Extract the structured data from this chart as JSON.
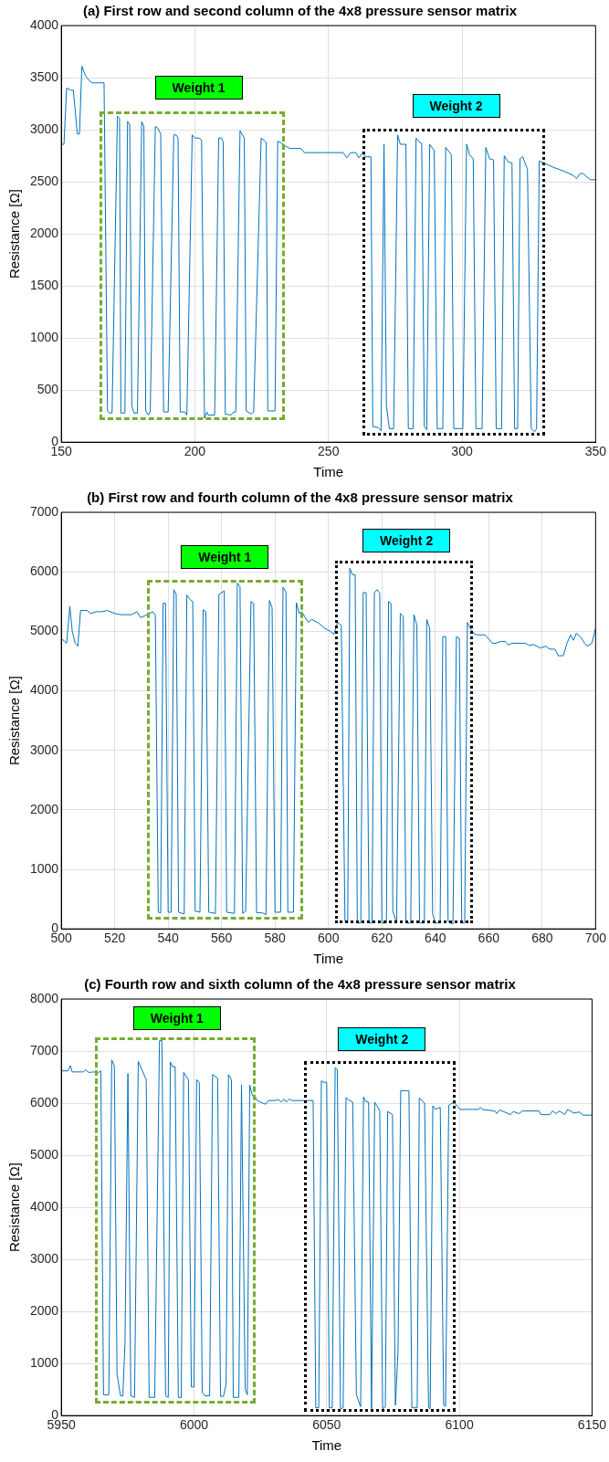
{
  "chart_data": [
    {
      "type": "line",
      "title": "(a) First row and second column of the 4x8 pressure sensor matrix",
      "xlabel": "Time",
      "ylabel": "Resistance [Ω]",
      "color": "#0072bd",
      "grid": true,
      "legend": false,
      "xlim": [
        150,
        350
      ],
      "xticks": [
        150,
        200,
        250,
        300,
        350
      ],
      "ylim": [
        0,
        4000
      ],
      "yticks": [
        0,
        500,
        1000,
        1500,
        2000,
        2500,
        3000,
        3500,
        4000
      ],
      "x": [
        150,
        151,
        152,
        153.5,
        154.5,
        156,
        156.8,
        157.7,
        159,
        160.5,
        161.5,
        166,
        167.3,
        168,
        169,
        171,
        171.8,
        172.3,
        173.8,
        174.8,
        175.6,
        176.4,
        177.2,
        178.5,
        180.1,
        180.9,
        181.6,
        182.6,
        183.3,
        185.2,
        186,
        187.2,
        188.3,
        190,
        192.1,
        193,
        193.7,
        194.5,
        196.3,
        197,
        199,
        200,
        201.6,
        202.5,
        203.6,
        204.5,
        205,
        207.4,
        208.9,
        210,
        210.6,
        211.4,
        213.5,
        214.5,
        215.3,
        216.9,
        218.5,
        219.2,
        221,
        222,
        224.8,
        226.7,
        227.3,
        228.2,
        230,
        231,
        232.5,
        234.1,
        235.5,
        239.7,
        241,
        255.5,
        256.9,
        258.3,
        260.3,
        261.4,
        262.8,
        263.8,
        265.9,
        266.6,
        268.6,
        269.7,
        270.8,
        271.7,
        272.8,
        274.4,
        275.9,
        276.9,
        279,
        279.9,
        281.7,
        282.8,
        284.5,
        284.9,
        285.9,
        286.8,
        287.9,
        289.6,
        290.7,
        292.8,
        293.9,
        296,
        296.9,
        300.3,
        301.7,
        302.8,
        304.2,
        305.2,
        307.5,
        308.9,
        310.3,
        311.8,
        312.8,
        314.8,
        315.8,
        317.3,
        318.7,
        319.7,
        320.8,
        321.7,
        322.7,
        324.5,
        325.9,
        327.2,
        327.9,
        328.9,
        330.7,
        334.1,
        338.3,
        341.7,
        342.9,
        344.2,
        345.2,
        348,
        350
      ],
      "values": [
        2860,
        2860,
        3400,
        3380,
        3380,
        2960,
        2960,
        3610,
        3520,
        3470,
        3450,
        3450,
        300,
        280,
        280,
        3130,
        3110,
        280,
        280,
        3080,
        3050,
        350,
        280,
        280,
        3080,
        3030,
        300,
        260,
        300,
        3030,
        3020,
        2960,
        290,
        290,
        2950,
        2950,
        2920,
        290,
        290,
        260,
        2950,
        2920,
        2920,
        2900,
        230,
        290,
        260,
        260,
        2920,
        2920,
        2880,
        270,
        260,
        290,
        290,
        2990,
        2920,
        300,
        270,
        290,
        2920,
        2880,
        300,
        300,
        300,
        2890,
        2870,
        2840,
        2820,
        2820,
        2780,
        2780,
        2730,
        2780,
        2780,
        2730,
        2780,
        2740,
        2740,
        150,
        140,
        110,
        2860,
        350,
        130,
        130,
        2950,
        2860,
        2860,
        130,
        130,
        2920,
        2870,
        2870,
        150,
        120,
        2860,
        2800,
        130,
        130,
        2830,
        2760,
        130,
        130,
        2860,
        2760,
        2720,
        130,
        130,
        2830,
        2720,
        2710,
        130,
        130,
        2750,
        2690,
        2680,
        130,
        130,
        2720,
        2740,
        2620,
        130,
        100,
        130,
        2700,
        2680,
        2640,
        2600,
        2560,
        2530,
        2580,
        2580,
        2520,
        2520
      ],
      "annotations": [
        "Weight 1",
        "Weight 2"
      ]
    },
    {
      "type": "line",
      "title": "(b) First row and fourth column of the 4x8 pressure sensor matrix",
      "xlabel": "Time",
      "ylabel": "Resistance [Ω]",
      "color": "#0072bd",
      "grid": true,
      "legend": false,
      "xlim": [
        500,
        700
      ],
      "xticks": [
        500,
        520,
        540,
        560,
        580,
        600,
        620,
        640,
        660,
        680,
        700
      ],
      "ylim": [
        0,
        7000
      ],
      "yticks": [
        0,
        1000,
        2000,
        3000,
        4000,
        5000,
        6000,
        7000
      ],
      "x": [
        500,
        502,
        503.2,
        504.1,
        505.2,
        506.2,
        507.2,
        509.7,
        511,
        513.1,
        515.2,
        517.2,
        520,
        522.1,
        526.2,
        528.3,
        529.7,
        531.7,
        534.2,
        535.2,
        536.3,
        537.2,
        538.1,
        539,
        540,
        541.1,
        542.1,
        543,
        543.9,
        546,
        547,
        548.3,
        549.2,
        550.1,
        551.9,
        553.1,
        554.1,
        555.2,
        557.7,
        559,
        561,
        561.9,
        564.8,
        565.9,
        566.9,
        567.9,
        569,
        571,
        572,
        573.1,
        575.2,
        576.6,
        577.9,
        578.9,
        580,
        582.1,
        583,
        584.1,
        584.8,
        586.9,
        588,
        589,
        590,
        592.4,
        593.8,
        596.6,
        598.6,
        600.7,
        602,
        603.4,
        604.8,
        606.2,
        607.2,
        608,
        609,
        610,
        610.8,
        612.1,
        613,
        614.1,
        615.2,
        616.3,
        617.2,
        618.2,
        619.2,
        620,
        621.7,
        622.5,
        623.4,
        624.1,
        625.5,
        626.9,
        628,
        629,
        630.8,
        632,
        633.1,
        634.1,
        635.9,
        636.8,
        637.9,
        639,
        640,
        641.8,
        642.8,
        643.9,
        644.8,
        646.6,
        647.9,
        649,
        649.9,
        651,
        652,
        653.1,
        654.5,
        655.9,
        658.6,
        661.4,
        662.8,
        664.5,
        666.2,
        667.3,
        668.6,
        673.8,
        675.2,
        676.6,
        679.3,
        681.4,
        682.8,
        684.8,
        686,
        687.9,
        689.3,
        690.6,
        691.7,
        692.8,
        694.5,
        695.9,
        696.8,
        698.6,
        700
      ],
      "values": [
        4880,
        4800,
        5420,
        5000,
        4800,
        4750,
        5350,
        5350,
        5300,
        5330,
        5330,
        5350,
        5300,
        5280,
        5280,
        5330,
        5230,
        5270,
        5330,
        5270,
        280,
        270,
        5470,
        5470,
        280,
        280,
        5700,
        5620,
        280,
        250,
        5610,
        5530,
        5500,
        300,
        280,
        5360,
        5330,
        280,
        260,
        5620,
        5680,
        280,
        260,
        5810,
        5750,
        260,
        300,
        5500,
        5470,
        270,
        270,
        240,
        5520,
        5400,
        280,
        280,
        5740,
        5660,
        280,
        280,
        5480,
        5300,
        5330,
        5150,
        5200,
        5130,
        5050,
        5000,
        4950,
        5150,
        5100,
        130,
        100,
        6060,
        5950,
        5950,
        100,
        100,
        5650,
        5650,
        100,
        100,
        5650,
        5700,
        5640,
        100,
        100,
        5500,
        5470,
        300,
        100,
        5300,
        5250,
        100,
        100,
        5280,
        5100,
        100,
        100,
        5200,
        5050,
        250,
        100,
        100,
        4910,
        4910,
        120,
        80,
        4910,
        4880,
        100,
        100,
        5150,
        5050,
        4960,
        4940,
        4940,
        4800,
        4800,
        4830,
        4830,
        4770,
        4800,
        4800,
        4760,
        4780,
        4720,
        4750,
        4700,
        4700,
        4590,
        4590,
        4800,
        4940,
        4850,
        4970,
        4900,
        4800,
        4750,
        4800,
        5050
      ],
      "annotations": [
        "Weight 1",
        "Weight 2"
      ]
    },
    {
      "type": "line",
      "title": "(c) Fourth row and sixth column of the 4x8 pressure sensor matrix",
      "xlabel": "Time",
      "ylabel": "Resistance [Ω]",
      "color": "#0072bd",
      "grid": true,
      "legend": false,
      "xlim": [
        5950,
        6150
      ],
      "xticks": [
        5950,
        6000,
        6050,
        6100,
        6150
      ],
      "ylim": [
        0,
        8000
      ],
      "yticks": [
        0,
        1000,
        2000,
        3000,
        4000,
        5000,
        6000,
        7000,
        8000
      ],
      "x": [
        5950,
        5952.5,
        5953.4,
        5954.1,
        5958.3,
        5959.2,
        5960.3,
        5962.4,
        5963.8,
        5964.9,
        5965.9,
        5967.9,
        5969,
        5970,
        5971,
        5972.3,
        5973.2,
        5974,
        5975.1,
        5976.2,
        5977.6,
        5979,
        5980.3,
        5982,
        5983.1,
        5985.2,
        5987,
        5987.9,
        5989.3,
        5990.3,
        5991.1,
        5991.9,
        5992.9,
        5994.1,
        5995.2,
        5996.1,
        5997.9,
        5999,
        6000,
        6001,
        6002,
        6003.1,
        6004.1,
        6005.9,
        6007,
        6008.9,
        6010,
        6011.1,
        6012.1,
        6013,
        6014.1,
        6014.8,
        6016.9,
        6017.9,
        6019.3,
        6020.1,
        6021,
        6022,
        6022.8,
        6023.8,
        6025.9,
        6027,
        6028.1,
        6030.7,
        6031.8,
        6032.8,
        6033.9,
        6034.8,
        6035.9,
        6036.9,
        6044.9,
        6045.9,
        6047,
        6048,
        6048.7,
        6050,
        6051,
        6052.1,
        6053.2,
        6054,
        6055.2,
        6056.2,
        6057.3,
        6058.3,
        6059.8,
        6061.2,
        6062.8,
        6063.9,
        6064.7,
        6065.8,
        6066.9,
        6068.1,
        6069.3,
        6070,
        6071.1,
        6072.1,
        6073,
        6074.8,
        6075.9,
        6076.9,
        6077.9,
        6081,
        6082.1,
        6084.1,
        6084.9,
        6086.9,
        6088.4,
        6089,
        6090,
        6091,
        6092.8,
        6094.1,
        6094.8,
        6096,
        6097.3,
        6098.3,
        6100.3,
        6107.2,
        6108,
        6108.6,
        6113.4,
        6114.1,
        6115.2,
        6119.3,
        6120.3,
        6122.4,
        6123.8,
        6130,
        6130.7,
        6134.1,
        6135.1,
        6136.4,
        6137.8,
        6139.7,
        6140.8,
        6143.1,
        6145.2,
        6146.6,
        6150
      ],
      "values": [
        6620,
        6620,
        6720,
        6600,
        6600,
        6640,
        6590,
        6600,
        6580,
        6620,
        400,
        400,
        6830,
        6720,
        800,
        380,
        380,
        1400,
        6570,
        380,
        350,
        6800,
        6650,
        6450,
        350,
        350,
        7200,
        7200,
        380,
        350,
        6790,
        6700,
        6700,
        350,
        350,
        6590,
        6450,
        550,
        550,
        6450,
        6400,
        450,
        380,
        380,
        6550,
        6480,
        370,
        370,
        600,
        6550,
        6450,
        350,
        350,
        6350,
        500,
        400,
        6350,
        6150,
        6150,
        6050,
        6000,
        5980,
        6050,
        6050,
        6070,
        6020,
        6080,
        6020,
        6080,
        6050,
        6050,
        150,
        150,
        6430,
        6400,
        6400,
        150,
        150,
        6680,
        6650,
        130,
        150,
        6110,
        6060,
        6020,
        400,
        170,
        6120,
        6030,
        6020,
        130,
        6020,
        5920,
        5850,
        130,
        170,
        5840,
        5780,
        200,
        1250,
        6240,
        6240,
        150,
        150,
        6100,
        6000,
        150,
        130,
        5950,
        5880,
        5920,
        200,
        180,
        5960,
        6000,
        6000,
        5880,
        5880,
        5920,
        5880,
        5850,
        5800,
        5870,
        5780,
        5840,
        5800,
        5850,
        5850,
        5780,
        5780,
        5850,
        5800,
        5850,
        5780,
        5880,
        5810,
        5830,
        5770,
        5770
      ],
      "annotations": [
        "Weight 1",
        "Weight 2"
      ]
    }
  ]
}
